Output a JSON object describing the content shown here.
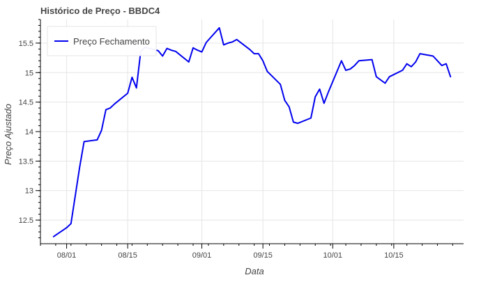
{
  "chart_data": {
    "type": "line",
    "title": "Histórico de Preço - BBDC4",
    "xlabel": "Data",
    "ylabel": "Preço Ajustado",
    "x_tick_labels": [
      "08/01",
      "08/15",
      "09/01",
      "09/15",
      "10/01",
      "10/15"
    ],
    "y_tick_labels": [
      "12.5",
      "13",
      "13.5",
      "14",
      "14.5",
      "15",
      "15.5"
    ],
    "y_ticks": [
      12.5,
      13.0,
      13.5,
      14.0,
      14.5,
      15.0,
      15.5
    ],
    "ylim": [
      12.1,
      15.9
    ],
    "xlim": [
      "2022-07-26",
      "2022-10-31"
    ],
    "grid": true,
    "legend_position": "top-left",
    "series": [
      {
        "name": "Preço Fechamento",
        "color": "#0000ee",
        "x": [
          "2022-07-29",
          "2022-08-01",
          "2022-08-02",
          "2022-08-04",
          "2022-08-05",
          "2022-08-08",
          "2022-08-09",
          "2022-08-10",
          "2022-08-11",
          "2022-08-12",
          "2022-08-15",
          "2022-08-16",
          "2022-08-17",
          "2022-08-18",
          "2022-08-19",
          "2022-08-22",
          "2022-08-23",
          "2022-08-24",
          "2022-08-25",
          "2022-08-26",
          "2022-08-29",
          "2022-08-30",
          "2022-08-31",
          "2022-09-01",
          "2022-09-02",
          "2022-09-05",
          "2022-09-06",
          "2022-09-07",
          "2022-09-08",
          "2022-09-09",
          "2022-09-12",
          "2022-09-13",
          "2022-09-14",
          "2022-09-15",
          "2022-09-16",
          "2022-09-19",
          "2022-09-20",
          "2022-09-21",
          "2022-09-22",
          "2022-09-23",
          "2022-09-26",
          "2022-09-27",
          "2022-09-28",
          "2022-09-29",
          "2022-09-30",
          "2022-10-03",
          "2022-10-04",
          "2022-10-05",
          "2022-10-06",
          "2022-10-07",
          "2022-10-10",
          "2022-10-11",
          "2022-10-13",
          "2022-10-14",
          "2022-10-17",
          "2022-10-18",
          "2022-10-19",
          "2022-10-20",
          "2022-10-21",
          "2022-10-24",
          "2022-10-25",
          "2022-10-26",
          "2022-10-27",
          "2022-10-28"
        ],
        "values": [
          12.22,
          12.37,
          12.44,
          13.4,
          13.83,
          13.86,
          14.02,
          14.37,
          14.4,
          14.47,
          14.65,
          14.92,
          14.74,
          15.36,
          15.43,
          15.37,
          15.28,
          15.41,
          15.38,
          15.36,
          15.18,
          15.42,
          15.38,
          15.35,
          15.51,
          15.76,
          15.47,
          15.5,
          15.52,
          15.56,
          15.39,
          15.32,
          15.32,
          15.2,
          15.02,
          14.8,
          14.53,
          14.42,
          14.16,
          14.14,
          14.23,
          14.59,
          14.72,
          14.48,
          14.67,
          15.2,
          15.04,
          15.06,
          15.12,
          15.2,
          15.22,
          14.93,
          14.82,
          14.93,
          15.04,
          15.15,
          15.1,
          15.18,
          15.32,
          15.28,
          15.2,
          15.12,
          15.15,
          14.93
        ]
      }
    ]
  }
}
